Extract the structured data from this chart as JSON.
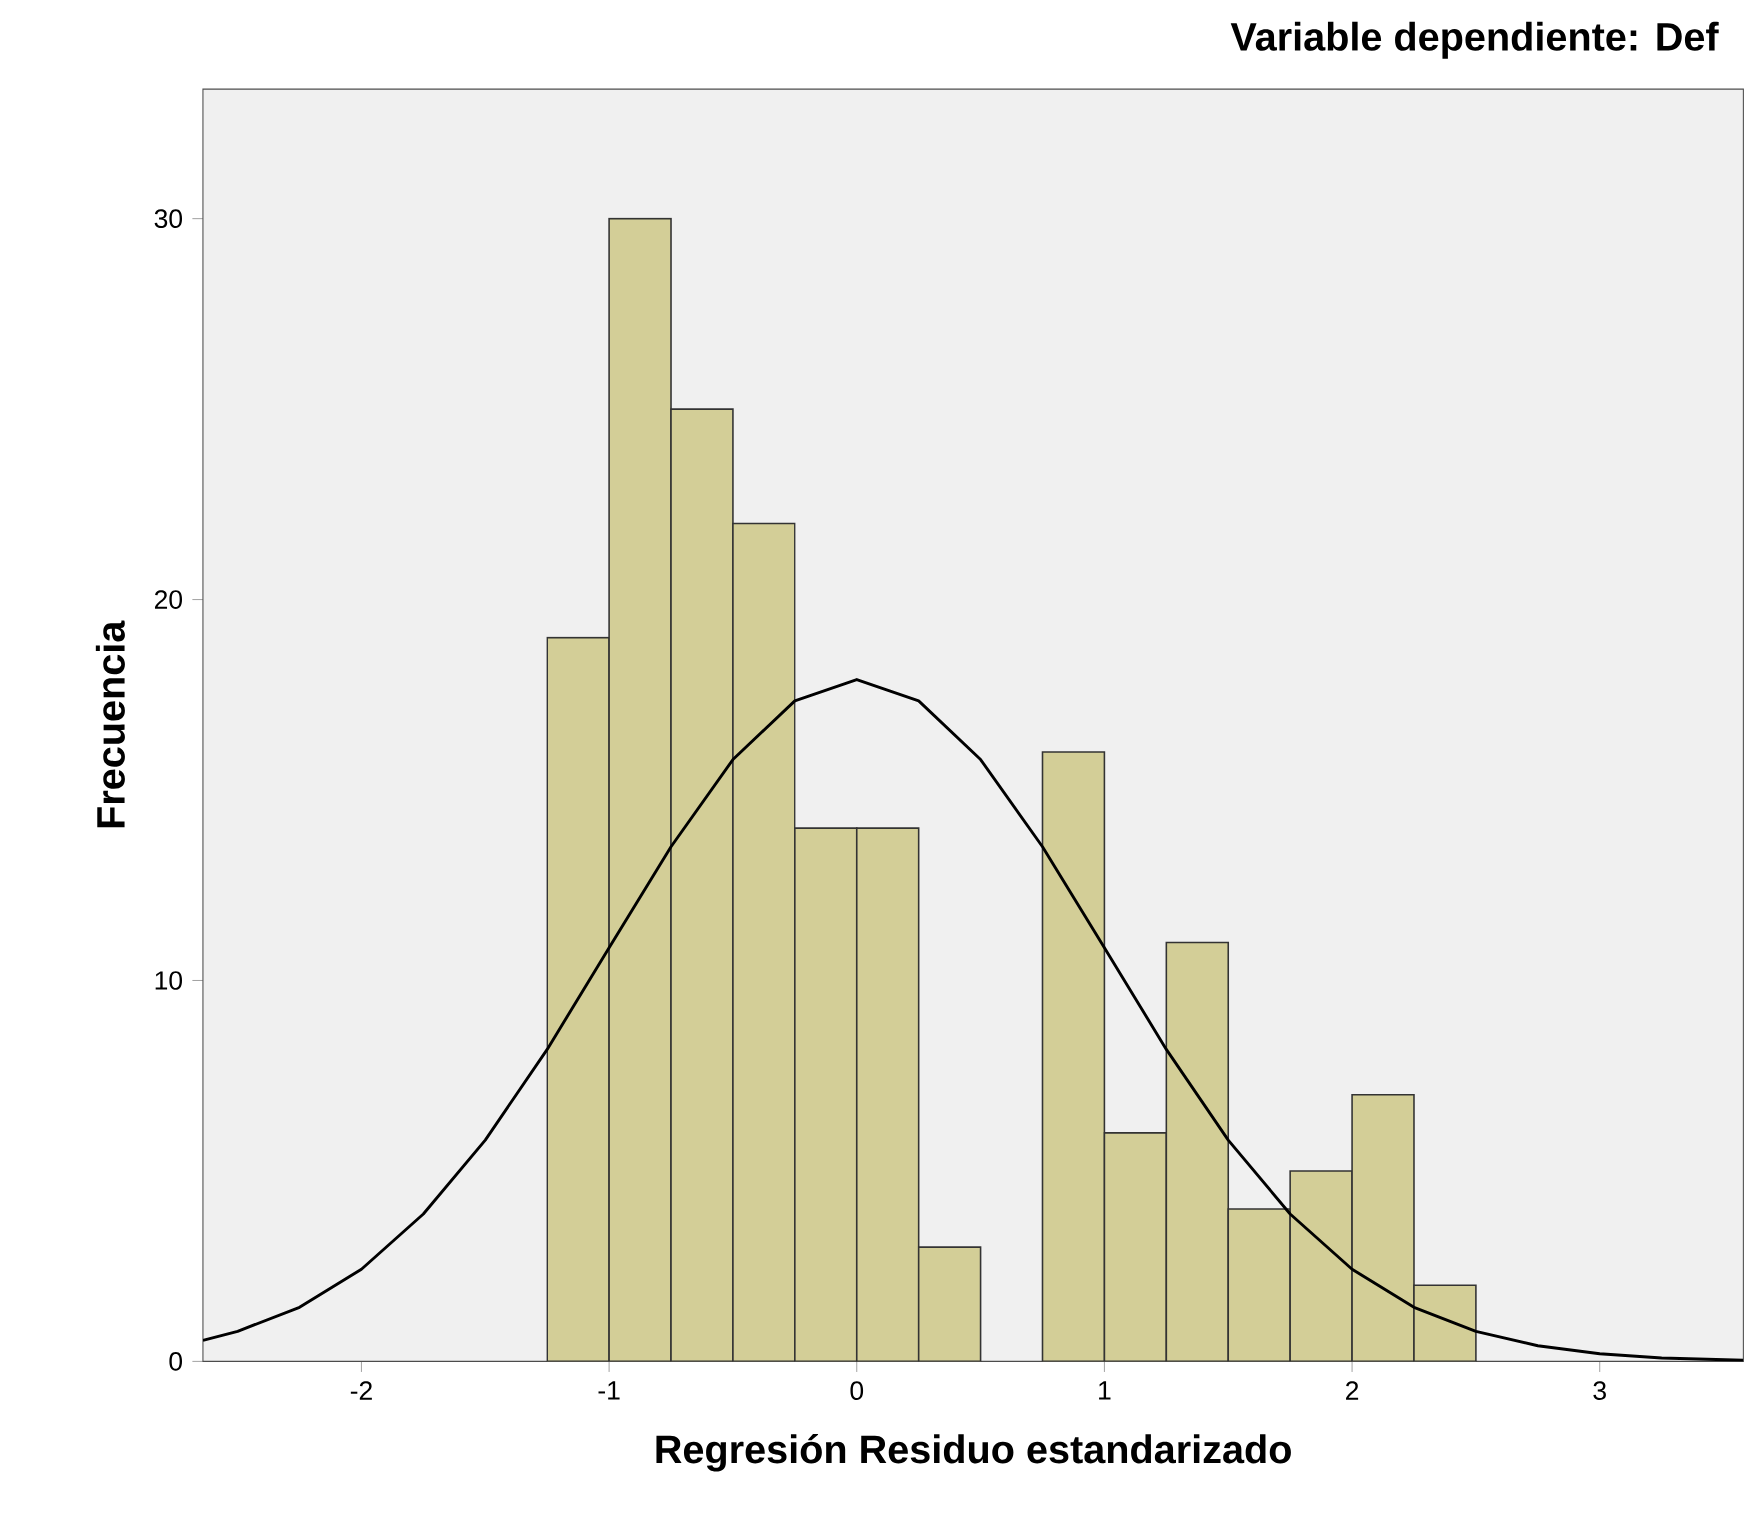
{
  "chart_data": {
    "type": "histogram",
    "title": "Variable dependiente: Def",
    "xlabel": "Regresión Residuo estandarizado",
    "ylabel": "Frecuencia",
    "bins": [
      -1.25,
      -1,
      -0.75,
      -0.5,
      -0.25,
      0,
      0.25,
      0.5,
      0.75,
      1,
      1.25,
      1.5,
      1.75,
      2,
      2.25,
      2.5
    ],
    "values": [
      19,
      30,
      25,
      22,
      14,
      14,
      3,
      0,
      16,
      6,
      11,
      4,
      5,
      7,
      2
    ],
    "color": "#d3ce97",
    "xlim": [
      -2.64,
      3.58
    ],
    "ylim": [
      0,
      33.4
    ],
    "xticks": [
      -2,
      -1,
      0,
      1,
      2,
      3
    ],
    "yticks": [
      0,
      10,
      20,
      30
    ],
    "series": [
      {
        "type": "line",
        "color": "#000000",
        "x": [
          -2.64,
          -2.5,
          -2.25,
          -2,
          -1.75,
          -1.5,
          -1.25,
          -1,
          -0.75,
          -0.5,
          -0.25,
          0,
          0.25,
          0.5,
          0.75,
          1,
          1.25,
          1.5,
          1.75,
          2,
          2.25,
          2.5,
          2.75,
          3,
          3.25,
          3.58
        ],
        "values": [
          0.55,
          0.79,
          1.42,
          2.42,
          3.87,
          5.81,
          8.19,
          10.86,
          13.51,
          15.8,
          17.34,
          17.9,
          17.34,
          15.8,
          13.51,
          10.86,
          8.19,
          5.81,
          3.87,
          2.42,
          1.42,
          0.79,
          0.41,
          0.2,
          0.09,
          0.03
        ]
      }
    ]
  }
}
